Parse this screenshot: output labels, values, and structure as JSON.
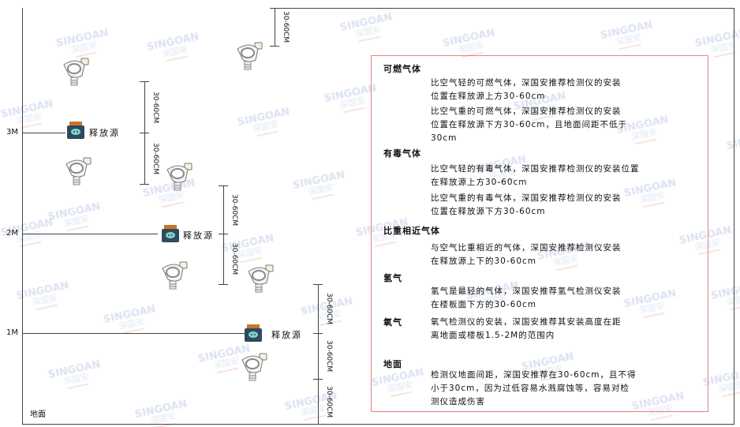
{
  "watermark": {
    "brand": "SINGOAN",
    "cn": "深国安"
  },
  "levels": [
    {
      "label": "3M"
    },
    {
      "label": "2M"
    },
    {
      "label": "1M"
    }
  ],
  "ground_label": "地面",
  "source_label": "释放源",
  "dimension_label": "30-60CM",
  "panel": {
    "sections": [
      {
        "title": "可燃气体",
        "paras": [
          "比空气轻的可燃气体，深国安推荐检测仪的安装\n位置在释放源上方30-60cm",
          "比空气重的可燃气体，深国安推荐检测仪的安装\n位置在释放源下方30-60cm，且地面间距不低于\n30cm"
        ]
      },
      {
        "title": "有毒气体",
        "paras": [
          "比空气轻的有毒气体，深国安推荐检测仪的安装位置\n在释放源上方30-60cm",
          "比空气重的有毒气体，深国安推荐检测仪的安装\n位置在释放源下方30-60cm"
        ]
      },
      {
        "title": "比重相近气体",
        "paras": [
          "与空气比重相近的气体，深国安推荐检测仪安装\n在释放源上下的30-60cm"
        ]
      },
      {
        "title": "氢气",
        "paras": [
          "氢气是最轻的气体，深国安推荐氢气检测仪安装\n在楼板面下方的30-60cm"
        ]
      },
      {
        "title": "氧气",
        "paras": [
          "氧气检测仪的安装，深国安推荐其安装高度在距\n离地面或楼板1.5-2M的范围内"
        ]
      },
      {
        "title": "地面",
        "paras": [
          "检测仪地面间距，深国安推荐在30-60cm，且不得\n小于30cm，因为过低容易水溅腐蚀等，容易对检\n测仪造成伤害"
        ]
      }
    ]
  },
  "colors": {
    "border": "#e87f7f",
    "source_body": "#2e4a5e",
    "source_cap": "#c8732a"
  }
}
